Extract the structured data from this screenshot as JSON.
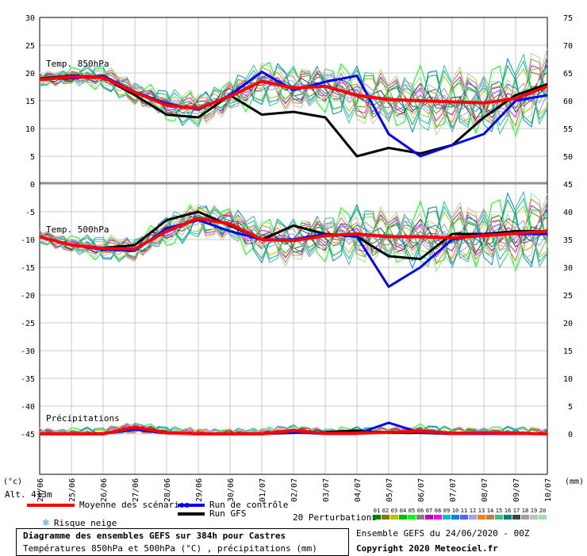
{
  "chart_data": [
    {
      "type": "line",
      "panel_label": "Temp. 850hPa",
      "x": [
        "24/06",
        "25/06",
        "26/06",
        "27/06",
        "28/06",
        "29/06",
        "30/06",
        "01/07",
        "02/07",
        "03/07",
        "04/07",
        "05/07",
        "06/07",
        "07/07",
        "08/07",
        "09/07",
        "10/07"
      ],
      "ylim": [
        0,
        30
      ],
      "yticks": [
        0,
        5,
        10,
        15,
        20,
        25,
        30
      ],
      "series": [
        {
          "name": "Moyenne des scénarios",
          "color": "#ff0000",
          "values": [
            18.8,
            19.3,
            19.2,
            16.5,
            14.2,
            13.6,
            15.8,
            18.5,
            17.3,
            17.6,
            16.0,
            15.2,
            15.0,
            14.8,
            14.6,
            15.4,
            17.6
          ]
        },
        {
          "name": "Run de contrôle",
          "color": "#0000ff",
          "values": [
            19.0,
            19.0,
            19.5,
            16.6,
            14.5,
            13.4,
            16.0,
            20.2,
            16.9,
            18.4,
            19.5,
            9.0,
            5.0,
            7.0,
            9.0,
            15.0,
            16.0
          ]
        },
        {
          "name": "Run GFS",
          "color": "#000000",
          "values": [
            19.0,
            19.5,
            19.2,
            16.0,
            12.5,
            12.0,
            16.0,
            12.5,
            13.0,
            12.0,
            5.0,
            6.5,
            5.5,
            7.0,
            12.0,
            16.0,
            18.0
          ]
        }
      ]
    },
    {
      "type": "line",
      "panel_label": "Temp. 500hPa",
      "x": [
        "24/06",
        "25/06",
        "26/06",
        "27/06",
        "28/06",
        "29/06",
        "30/06",
        "01/07",
        "02/07",
        "03/07",
        "04/07",
        "05/07",
        "06/07",
        "07/07",
        "08/07",
        "09/07",
        "10/07"
      ],
      "ylim": [
        -22,
        -3
      ],
      "yticks": [
        -5,
        -10,
        -15,
        -20
      ],
      "series": [
        {
          "name": "Moyenne des scénarios",
          "color": "#ff0000",
          "values": [
            -9.5,
            -11.0,
            -11.6,
            -11.7,
            -8.5,
            -6.2,
            -7.2,
            -10.0,
            -10.2,
            -9.3,
            -9.0,
            -9.5,
            -9.5,
            -9.7,
            -9.3,
            -8.9,
            -8.5
          ]
        },
        {
          "name": "Run de contrôle",
          "color": "#0000ff",
          "values": [
            -9.5,
            -11.0,
            -11.8,
            -12.0,
            -8.0,
            -6.5,
            -8.5,
            -10.0,
            -10.0,
            -9.0,
            -9.5,
            -18.5,
            -15.0,
            -10.0,
            -9.0,
            -9.0,
            -9.0
          ]
        },
        {
          "name": "Run GFS",
          "color": "#000000",
          "values": [
            -9.5,
            -11.0,
            -11.5,
            -11.0,
            -6.5,
            -5.0,
            -7.5,
            -10.0,
            -7.5,
            -9.0,
            -9.5,
            -13.0,
            -13.5,
            -9.0,
            -9.0,
            -8.5,
            -8.5
          ]
        }
      ]
    },
    {
      "type": "line",
      "panel_label": "Précipitations",
      "x": [
        "24/06",
        "25/06",
        "26/06",
        "27/06",
        "28/06",
        "29/06",
        "30/06",
        "01/07",
        "02/07",
        "03/07",
        "04/07",
        "05/07",
        "06/07",
        "07/07",
        "08/07",
        "09/07",
        "10/07"
      ],
      "ylim": [
        0,
        12
      ],
      "yticks": [
        0,
        5,
        10
      ],
      "series": [
        {
          "name": "Moyenne des scénarios",
          "color": "#ff0000",
          "values": [
            0,
            0,
            0,
            1.2,
            0.2,
            0,
            0,
            0,
            0.6,
            0.1,
            0.1,
            0.3,
            0.5,
            0.1,
            0.2,
            0.1,
            0
          ]
        },
        {
          "name": "Run de contrôle",
          "color": "#0000ff",
          "values": [
            0,
            0,
            0,
            0.8,
            0.1,
            0,
            0,
            0,
            0.3,
            0,
            0,
            2.0,
            0.2,
            0,
            0,
            0,
            0
          ]
        },
        {
          "name": "Run GFS",
          "color": "#000000",
          "values": [
            0,
            0,
            0,
            1.0,
            0.2,
            0,
            0,
            0,
            0.2,
            0.3,
            0.6,
            0.2,
            0.2,
            0,
            0,
            0,
            0
          ]
        }
      ]
    }
  ],
  "axes": {
    "left_ticks": [
      "30",
      "25",
      "20",
      "15",
      "10",
      "5",
      "0",
      "-5",
      "-10",
      "-15",
      "-20",
      "-25",
      "-30",
      "-35",
      "-40",
      "-45"
    ],
    "right_ticks": [
      "75",
      "70",
      "65",
      "60",
      "55",
      "50",
      "45",
      "40",
      "35",
      "30",
      "25",
      "20",
      "15",
      "10",
      "5",
      "0"
    ],
    "left_unit": "(°c)",
    "right_unit": "(mm)",
    "altitude": "Alt. 413m",
    "dates": [
      "24/06",
      "25/06",
      "26/06",
      "27/06",
      "28/06",
      "29/06",
      "30/06",
      "01/07",
      "02/07",
      "03/07",
      "04/07",
      "05/07",
      "06/07",
      "07/07",
      "08/07",
      "09/07",
      "10/07"
    ]
  },
  "legend": {
    "mean": "Moyenne des scénarios",
    "control": "Run de contrôle",
    "gfs": "Run GFS",
    "snow": "Risque neige",
    "perturbations_label": "20 Perturbations",
    "perturbation_numbers": [
      "01",
      "02",
      "03",
      "04",
      "05",
      "06",
      "07",
      "08",
      "09",
      "10",
      "11",
      "12",
      "13",
      "14",
      "15",
      "16",
      "17",
      "18",
      "19",
      "20"
    ],
    "perturbation_colors": [
      "#008000",
      "#808000",
      "#c0c000",
      "#00c000",
      "#00ff00",
      "#808080",
      "#c000c0",
      "#ff00ff",
      "#00c0c0",
      "#0080ff",
      "#6060ff",
      "#a0a0ff",
      "#ff8000",
      "#c08040",
      "#40c080",
      "#008080",
      "#404040",
      "#a0a0a0",
      "#c0c0c0",
      "#a0e0a0"
    ]
  },
  "footer": {
    "title": "Diagramme des ensembles GEFS sur 384h pour Castres",
    "subtitle": "Températures 850hPa et 500hPa (°C) , précipitations (mm)",
    "run_info": "Ensemble GEFS du 24/06/2020 - 00Z",
    "copyright": "Copyright 2020 Meteociel.fr"
  },
  "colors": {
    "mean": "#ff0000",
    "control": "#0000ff",
    "gfs": "#000000",
    "grid": "#c8c8c8",
    "separator": "#909090",
    "snow_icon": "#3399ff"
  }
}
